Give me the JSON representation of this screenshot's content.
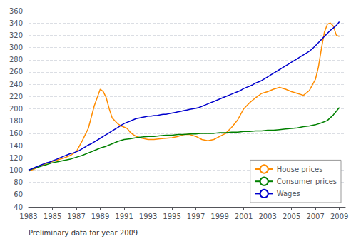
{
  "chart_data": {
    "type": "line",
    "annotations": [
      "Preliminary data for year 2009"
    ],
    "xlim": [
      1983.0,
      2009.5
    ],
    "xticks": [
      1983,
      1985,
      1987,
      1989,
      1991,
      1993,
      1995,
      1997,
      1999,
      2001,
      2003,
      2005,
      2007,
      2009
    ],
    "ylim": [
      40,
      360
    ],
    "yticks": [
      40,
      60,
      80,
      100,
      120,
      140,
      160,
      180,
      200,
      220,
      240,
      260,
      280,
      300,
      320,
      340,
      360
    ],
    "grid": true,
    "legend": "lower right",
    "series": [
      {
        "name": "House prices",
        "color": "#FF8C00",
        "x": [
          1983.0,
          1983.5,
          1984.0,
          1984.5,
          1985.0,
          1985.5,
          1986.0,
          1986.5,
          1987.0,
          1987.5,
          1988.0,
          1988.5,
          1989.0,
          1989.25,
          1989.5,
          1989.75,
          1990.0,
          1990.25,
          1990.5,
          1990.75,
          1991.0,
          1991.25,
          1991.5,
          1991.75,
          1992.0,
          1992.5,
          1993.0,
          1993.5,
          1994.0,
          1994.5,
          1995.0,
          1995.5,
          1996.0,
          1996.5,
          1997.0,
          1997.5,
          1998.0,
          1998.5,
          1999.0,
          1999.5,
          2000.0,
          2000.5,
          2001.0,
          2001.5,
          2002.0,
          2002.5,
          2003.0,
          2003.5,
          2004.0,
          2004.5,
          2005.0,
          2005.5,
          2006.0,
          2006.5,
          2007.0,
          2007.25,
          2007.5,
          2007.75,
          2008.0,
          2008.25,
          2008.5,
          2008.75,
          2009.0
        ],
        "values": [
          98,
          102,
          107,
          111,
          114,
          117,
          120,
          124,
          130,
          148,
          168,
          205,
          232,
          228,
          218,
          200,
          185,
          180,
          175,
          172,
          170,
          168,
          162,
          158,
          155,
          152,
          150,
          150,
          151,
          152,
          153,
          155,
          158,
          158,
          155,
          150,
          148,
          150,
          155,
          160,
          170,
          182,
          200,
          210,
          218,
          225,
          228,
          232,
          235,
          232,
          228,
          225,
          222,
          230,
          248,
          268,
          298,
          325,
          338,
          340,
          335,
          320,
          318
        ]
      },
      {
        "name": "Consumer prices",
        "color": "#008000",
        "x": [
          1983.0,
          1983.5,
          1984.0,
          1984.5,
          1985.0,
          1985.5,
          1986.0,
          1986.5,
          1987.0,
          1987.5,
          1988.0,
          1988.5,
          1989.0,
          1989.5,
          1990.0,
          1990.5,
          1991.0,
          1991.5,
          1992.0,
          1992.5,
          1993.0,
          1993.5,
          1994.0,
          1994.5,
          1995.0,
          1995.5,
          1996.0,
          1996.5,
          1997.0,
          1997.5,
          1998.0,
          1998.5,
          1999.0,
          1999.5,
          2000.0,
          2000.5,
          2001.0,
          2001.5,
          2002.0,
          2002.5,
          2003.0,
          2003.5,
          2004.0,
          2004.5,
          2005.0,
          2005.5,
          2006.0,
          2006.5,
          2007.0,
          2007.5,
          2008.0,
          2008.5,
          2009.0
        ],
        "values": [
          100,
          103,
          106,
          109,
          112,
          114,
          116,
          118,
          121,
          124,
          128,
          132,
          136,
          139,
          143,
          147,
          150,
          151,
          153,
          154,
          155,
          155,
          156,
          157,
          157,
          158,
          158,
          159,
          159,
          160,
          160,
          160,
          161,
          161,
          162,
          162,
          163,
          163,
          164,
          164,
          165,
          165,
          166,
          167,
          168,
          169,
          171,
          172,
          174,
          177,
          181,
          190,
          202
        ]
      },
      {
        "name": "Wages",
        "color": "#0000CD",
        "x": [
          1983.0,
          1983.25,
          1983.5,
          1983.75,
          1984.0,
          1984.25,
          1984.5,
          1984.75,
          1985.0,
          1985.25,
          1985.5,
          1985.75,
          1986.0,
          1986.25,
          1986.5,
          1986.75,
          1987.0,
          1987.25,
          1987.5,
          1987.75,
          1988.0,
          1988.25,
          1988.5,
          1988.75,
          1989.0,
          1989.25,
          1989.5,
          1989.75,
          1990.0,
          1990.25,
          1990.5,
          1990.75,
          1991.0,
          1991.25,
          1991.5,
          1991.75,
          1992.0,
          1992.25,
          1992.5,
          1992.75,
          1993.0,
          1993.25,
          1993.5,
          1993.75,
          1994.0,
          1994.25,
          1994.5,
          1994.75,
          1995.0,
          1995.25,
          1995.5,
          1995.75,
          1996.0,
          1996.25,
          1996.5,
          1996.75,
          1997.0,
          1997.25,
          1997.5,
          1997.75,
          1998.0,
          1998.25,
          1998.5,
          1998.75,
          1999.0,
          1999.25,
          1999.5,
          1999.75,
          2000.0,
          2000.25,
          2000.5,
          2000.75,
          2001.0,
          2001.25,
          2001.5,
          2001.75,
          2002.0,
          2002.25,
          2002.5,
          2002.75,
          2003.0,
          2003.25,
          2003.5,
          2003.75,
          2004.0,
          2004.25,
          2004.5,
          2004.75,
          2005.0,
          2005.25,
          2005.5,
          2005.75,
          2006.0,
          2006.25,
          2006.5,
          2006.75,
          2007.0,
          2007.25,
          2007.5,
          2007.75,
          2008.0,
          2008.25,
          2008.5,
          2008.75,
          2009.0
        ],
        "values": [
          100,
          102,
          104,
          106,
          108,
          110,
          112,
          113,
          115,
          117,
          119,
          121,
          123,
          125,
          127,
          128,
          130,
          132,
          135,
          138,
          141,
          143,
          146,
          149,
          152,
          155,
          158,
          161,
          164,
          167,
          170,
          173,
          176,
          178,
          180,
          182,
          184,
          185,
          186,
          187,
          188,
          188,
          189,
          189,
          190,
          191,
          191,
          192,
          193,
          194,
          195,
          196,
          197,
          198,
          199,
          200,
          201,
          202,
          204,
          206,
          208,
          210,
          212,
          214,
          216,
          218,
          220,
          222,
          224,
          226,
          228,
          230,
          233,
          235,
          237,
          239,
          242,
          244,
          246,
          249,
          252,
          255,
          258,
          261,
          264,
          267,
          270,
          273,
          276,
          279,
          282,
          285,
          288,
          291,
          294,
          298,
          303,
          308,
          313,
          318,
          323,
          328,
          332,
          336,
          342
        ]
      }
    ]
  }
}
